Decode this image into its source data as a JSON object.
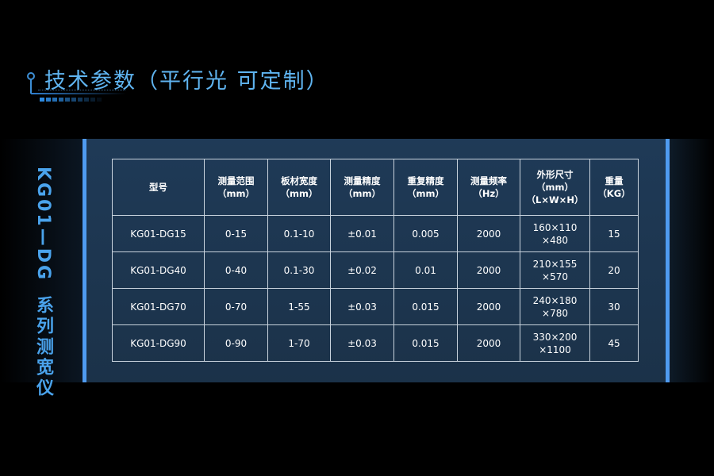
{
  "title": "技术参数（平行光 可定制）",
  "side_label": {
    "model": "KG01—DG",
    "series": "系列测宽仪"
  },
  "colors": {
    "accent": "#5fb4f0",
    "panel": "#1f3a57",
    "edge_bar": "#4f9bf0"
  },
  "table": {
    "headers": [
      {
        "line1": "型号",
        "line2": "",
        "line3": ""
      },
      {
        "line1": "测量范围",
        "line2": "（mm）",
        "line3": ""
      },
      {
        "line1": "板材宽度",
        "line2": "（mm）",
        "line3": ""
      },
      {
        "line1": "测量精度",
        "line2": "（mm）",
        "line3": ""
      },
      {
        "line1": "重复精度",
        "line2": "（mm）",
        "line3": ""
      },
      {
        "line1": "测量频率",
        "line2": "（Hz）",
        "line3": ""
      },
      {
        "line1": "外形尺寸",
        "line2": "（mm）",
        "line3": "（L×W×H）"
      },
      {
        "line1": "重量",
        "line2": "（KG）",
        "line3": ""
      }
    ],
    "rows": [
      {
        "model": "KG01-DG15",
        "range": "0-15",
        "width": "0.1-10",
        "accuracy": "±0.01",
        "repeat": "0.005",
        "freq": "2000",
        "dim1": "160×110",
        "dim2": "×480",
        "weight": "15"
      },
      {
        "model": "KG01-DG40",
        "range": "0-40",
        "width": "0.1-30",
        "accuracy": "±0.02",
        "repeat": "0.01",
        "freq": "2000",
        "dim1": "210×155",
        "dim2": "×570",
        "weight": "20"
      },
      {
        "model": "KG01-DG70",
        "range": "0-70",
        "width": "1-55",
        "accuracy": "±0.03",
        "repeat": "0.015",
        "freq": "2000",
        "dim1": "240×180",
        "dim2": "×780",
        "weight": "30"
      },
      {
        "model": "KG01-DG90",
        "range": "0-90",
        "width": "1-70",
        "accuracy": "±0.03",
        "repeat": "0.015",
        "freq": "2000",
        "dim1": "330×200",
        "dim2": "×1100",
        "weight": "45"
      }
    ]
  }
}
